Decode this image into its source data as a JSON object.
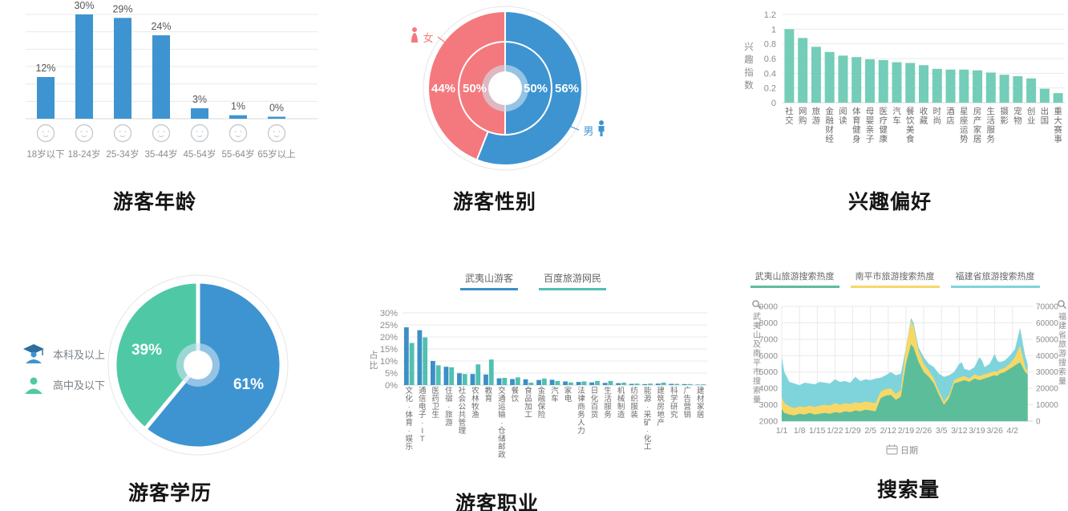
{
  "colors": {
    "blue": "#3e94d1",
    "pink": "#f4797e",
    "interest_teal": "#74cdb8",
    "edu_teal": "#4fc9a5",
    "occ_blue": "#3c8fc6",
    "occ_teal": "#52c0b1",
    "area_green": "#5cbd9b",
    "area_yellow": "#f7d867",
    "area_cyan": "#7fd4dc",
    "grid": "#e9e9e9",
    "baseline": "#d8d8d8",
    "axis_text": "#8c8c8c",
    "value_text": "#555555",
    "cat_text": "#6b6b6b",
    "face_gray": "#c6cbd0",
    "plate": "#e6e6e6",
    "halo": "#cfe3f2"
  },
  "chart_data": [
    {
      "id": "age",
      "type": "bar",
      "title": "游客年龄",
      "categories": [
        "18岁以下",
        "18-24岁",
        "25-34岁",
        "35-44岁",
        "45-54岁",
        "55-64岁",
        "65岁以上"
      ],
      "values": [
        12,
        30,
        29,
        24,
        3,
        1,
        0
      ],
      "value_labels": [
        "12%",
        "30%",
        "29%",
        "24%",
        "3%",
        "1%",
        "0%"
      ],
      "ylim": [
        0,
        30
      ],
      "grid": true,
      "category_icon": "face-icon"
    },
    {
      "id": "gender",
      "type": "pie",
      "title": "游客性别",
      "outer_ring": [
        {
          "label": "男",
          "value": 56,
          "text": "56%"
        },
        {
          "label": "女",
          "value": 44,
          "text": "44%"
        }
      ],
      "inner_ring": [
        {
          "label": "男",
          "value": 50,
          "text": "50%"
        },
        {
          "label": "女",
          "value": 50,
          "text": "50%"
        }
      ],
      "callouts": [
        {
          "label": "女",
          "icon": "female-icon"
        },
        {
          "label": "男",
          "icon": "male-icon"
        }
      ]
    },
    {
      "id": "interest",
      "type": "bar",
      "title": "兴趣偏好",
      "ylabel": "兴趣指数",
      "ytick_labels": [
        "0",
        "0.2",
        "0.4",
        "0.6",
        "0.8",
        "1",
        "1.2"
      ],
      "ylim": [
        0,
        1.2
      ],
      "grid": true,
      "categories": [
        "社交",
        "网购",
        "旅游",
        "金融财经",
        "阅读",
        "体育健身",
        "母婴亲子",
        "医疗健康",
        "汽车",
        "餐饮美食",
        "收藏",
        "时尚",
        "酒店",
        "星座运势",
        "房产家居",
        "生活服务",
        "摄影",
        "宠物",
        "创业",
        "出国",
        "重大赛事"
      ],
      "values": [
        1.0,
        0.88,
        0.76,
        0.69,
        0.64,
        0.62,
        0.59,
        0.58,
        0.55,
        0.54,
        0.51,
        0.46,
        0.45,
        0.45,
        0.44,
        0.41,
        0.38,
        0.36,
        0.33,
        0.19,
        0.13
      ]
    },
    {
      "id": "education",
      "type": "pie",
      "title": "游客学历",
      "slices": [
        {
          "label": "本科及以上",
          "value": 61,
          "text": "61%",
          "icon": "graduate-icon"
        },
        {
          "label": "高中及以下",
          "value": 39,
          "text": "39%",
          "icon": "person-icon"
        }
      ]
    },
    {
      "id": "occupation",
      "type": "bar",
      "title": "游客职业",
      "ylabel": "占比",
      "ytick_labels": [
        "0%",
        "5%",
        "10%",
        "15%",
        "20%",
        "25%",
        "30%"
      ],
      "ylim": [
        0,
        30
      ],
      "grid": true,
      "legend_position": "top",
      "categories": [
        "文化·体育·娱乐",
        "通信电子·IT",
        "医药卫生",
        "住宿·旅游",
        "社会公共管理",
        "农林牧渔",
        "教育",
        "交通运输·仓储邮政",
        "餐饮",
        "食品加工",
        "金融保险",
        "汽车",
        "家电",
        "法律商务人力",
        "日化百货",
        "生活服务",
        "机械制造",
        "纺织服装",
        "能源·采矿·化工",
        "建筑房地产",
        "科学研究",
        "广告营销",
        "建材家居"
      ],
      "series": [
        {
          "name": "武夷山游客",
          "values": [
            24,
            22.8,
            10,
            7.6,
            4.9,
            4.6,
            4.4,
            2.8,
            2.5,
            2.4,
            2.1,
            2.2,
            1.5,
            1.3,
            1.1,
            0.9,
            0.8,
            0.5,
            0.4,
            0.6,
            0.5,
            0.4,
            0.2
          ]
        },
        {
          "name": "百度旅游网民",
          "values": [
            17.5,
            19.8,
            8.2,
            7.4,
            4.6,
            8.6,
            10.6,
            3.0,
            3.2,
            1.0,
            2.7,
            1.7,
            1.1,
            1.5,
            1.7,
            1.7,
            1.0,
            0.6,
            0.6,
            1.0,
            0.5,
            0.4,
            0.3
          ]
        }
      ]
    },
    {
      "id": "search",
      "type": "area",
      "title": "搜索量",
      "xlabel": "日期",
      "xlabel_icon": "calendar-icon",
      "legend_position": "top",
      "x_tick_labels": [
        "1/1",
        "1/8",
        "1/15",
        "1/22",
        "1/29",
        "2/5",
        "2/12",
        "2/19",
        "2/26",
        "3/5",
        "3/12",
        "3/19",
        "3/26",
        "4/2"
      ],
      "x_tick_days": [
        0,
        7,
        14,
        21,
        28,
        35,
        42,
        49,
        56,
        63,
        70,
        77,
        84,
        91
      ],
      "x_domain": [
        0,
        99
      ],
      "left_axis": {
        "label": "武夷山及南平市搜索量",
        "icon": "magnifier-icon",
        "ticks": [
          2000,
          3000,
          4000,
          5000,
          6000,
          7000,
          8000,
          9000
        ],
        "lim": [
          2000,
          9000
        ]
      },
      "right_axis": {
        "label": "福建省旅游搜索量",
        "icon": "magnifier-icon",
        "ticks": [
          0,
          10000,
          20000,
          30000,
          40000,
          50000,
          60000,
          70000
        ],
        "lim": [
          0,
          70000
        ]
      },
      "x_days": [
        0,
        1,
        3,
        5,
        7,
        9,
        11,
        13,
        15,
        17,
        19,
        21,
        23,
        25,
        27,
        29,
        31,
        33,
        35,
        37,
        39,
        41,
        43,
        45,
        47,
        49,
        51,
        52,
        54,
        56,
        58,
        60,
        62,
        64,
        66,
        68,
        70,
        71,
        72,
        74,
        76,
        78,
        79,
        80,
        82,
        84,
        85,
        86,
        88,
        90,
        92,
        94,
        96,
        97
      ],
      "series": [
        {
          "name": "福建省旅游搜索热度",
          "axis": "right",
          "values": [
            39000,
            30000,
            24000,
            23000,
            22000,
            23500,
            23000,
            22500,
            24000,
            23500,
            23000,
            25500,
            24000,
            24500,
            23500,
            27000,
            24500,
            25500,
            25000,
            26000,
            26500,
            28000,
            30000,
            28000,
            29000,
            45000,
            63000,
            60000,
            45000,
            39000,
            35000,
            33000,
            29000,
            27000,
            28000,
            30000,
            35000,
            36000,
            32000,
            31000,
            33000,
            39000,
            37000,
            33000,
            35000,
            41000,
            37000,
            36000,
            37000,
            40000,
            44000,
            57000,
            40000,
            35000
          ]
        },
        {
          "name": "南平市旅游搜索热度",
          "axis": "left",
          "values": [
            3450,
            3100,
            2900,
            2800,
            2900,
            2850,
            2950,
            2850,
            2950,
            3000,
            2950,
            3100,
            3000,
            3100,
            3050,
            3150,
            3100,
            3200,
            3150,
            3100,
            3800,
            3950,
            4000,
            3650,
            3900,
            6500,
            8100,
            7800,
            6300,
            5500,
            5100,
            4600,
            3850,
            3200,
            3600,
            4500,
            4650,
            4700,
            4750,
            4600,
            4850,
            4750,
            4800,
            4850,
            4950,
            5050,
            5000,
            5150,
            5250,
            5500,
            5900,
            6600,
            5300,
            5000
          ]
        },
        {
          "name": "武夷山旅游搜索热度",
          "axis": "left",
          "values": [
            2750,
            2500,
            2400,
            2350,
            2450,
            2400,
            2500,
            2400,
            2450,
            2500,
            2450,
            2550,
            2500,
            2600,
            2550,
            2650,
            2600,
            2700,
            2650,
            2600,
            3400,
            3550,
            3600,
            3300,
            3500,
            5500,
            6700,
            6500,
            5600,
            5000,
            4700,
            4300,
            3600,
            3000,
            3400,
            4300,
            4400,
            4450,
            4500,
            4400,
            4600,
            4500,
            4550,
            4600,
            4700,
            4800,
            4750,
            4900,
            5000,
            5200,
            5400,
            5600,
            5000,
            4850
          ]
        }
      ],
      "legend_order": [
        "武夷山旅游搜索热度",
        "南平市旅游搜索热度",
        "福建省旅游搜索热度"
      ]
    }
  ]
}
